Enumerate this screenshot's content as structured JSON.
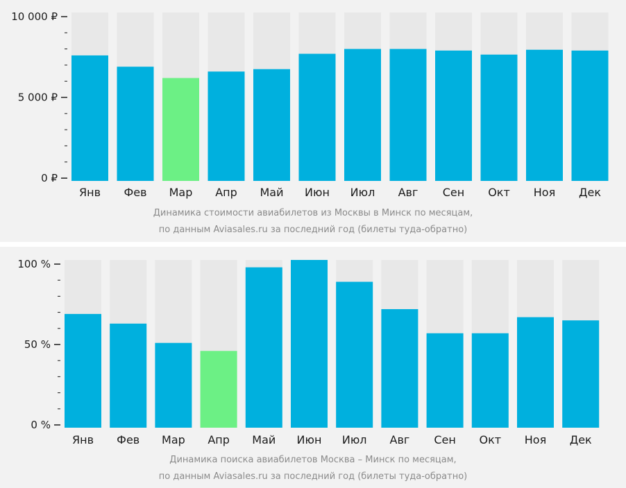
{
  "chart_data": [
    {
      "type": "bar",
      "categories": [
        "Янв",
        "Фев",
        "Мар",
        "Апр",
        "Май",
        "Июн",
        "Июл",
        "Авг",
        "Сен",
        "Окт",
        "Ноя",
        "Дек"
      ],
      "values": [
        7600,
        6900,
        6200,
        6600,
        6750,
        7700,
        8000,
        8000,
        7900,
        7650,
        7950,
        7900
      ],
      "highlight_index": 2,
      "ylim": [
        0,
        10000
      ],
      "yticks": [
        {
          "value": 0,
          "label": "0 ₽"
        },
        {
          "value": 5000,
          "label": "5 000 ₽"
        },
        {
          "value": 10000,
          "label": "10 000 ₽"
        }
      ],
      "caption": [
        "Динамика стоимости авиабилетов из Москвы в Минск по месяцам,",
        "по данным Aviasales.ru за последний год (билеты туда-обратно)"
      ],
      "grid": false,
      "colors": {
        "bar": "#00b0de",
        "highlight": "#6cf085",
        "track": "#e8e8e8"
      }
    },
    {
      "type": "bar",
      "categories": [
        "Янв",
        "Фев",
        "Мар",
        "Апр",
        "Май",
        "Июн",
        "Июл",
        "Авг",
        "Сен",
        "Окт",
        "Ноя",
        "Дек"
      ],
      "values": [
        69,
        63,
        51,
        46,
        98,
        103,
        89,
        72,
        57,
        57,
        67,
        65
      ],
      "highlight_index": 3,
      "ylim": [
        0,
        100
      ],
      "yticks": [
        {
          "value": 0,
          "label": "0 %"
        },
        {
          "value": 50,
          "label": "50 %"
        },
        {
          "value": 100,
          "label": "100 %"
        }
      ],
      "caption": [
        "Динамика поиска авиабилетов Москва – Минск по месяцам,",
        "по данным Aviasales.ru за последний год (билеты туда-обратно)"
      ],
      "grid": false,
      "colors": {
        "bar": "#00b0de",
        "highlight": "#6cf085",
        "track": "#e8e8e8"
      }
    }
  ]
}
